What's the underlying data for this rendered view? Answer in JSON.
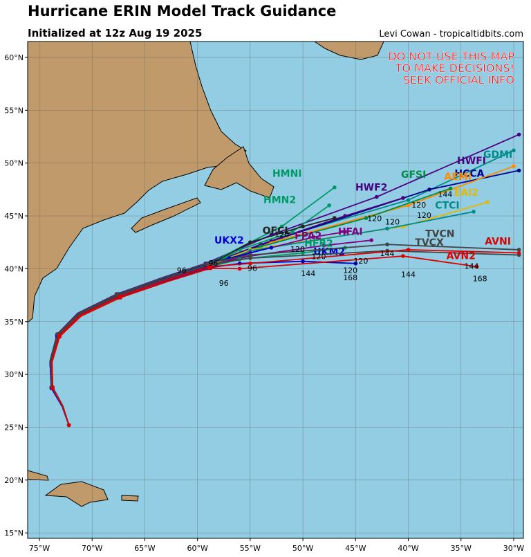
{
  "header": {
    "title": "Hurricane ERIN Model Track Guidance",
    "subtitle": "Initialized at 12z Aug 19 2025",
    "credit": "Levi Cowan - tropicaltidbits.com"
  },
  "warning": [
    "DO NOT USE THIS MAP",
    "TO MAKE DECISIONS!",
    "SEEK OFFICIAL INFO"
  ],
  "lat_ticks": [
    "60°N",
    "55°N",
    "50°N",
    "45°N",
    "40°N",
    "35°N",
    "30°N",
    "25°N",
    "20°N",
    "15°N"
  ],
  "lon_ticks": [
    "75°W",
    "70°W",
    "65°W",
    "60°W",
    "55°W",
    "50°W",
    "45°W",
    "40°W",
    "35°W",
    "30°W"
  ],
  "models": [
    "HWFI",
    "GDMI",
    "HCCA",
    "AEMI",
    "HWF2",
    "GFSI",
    "EAI2",
    "CTCI",
    "HMNI",
    "HMN2",
    "OFCL",
    "FPA2",
    "UKX2",
    "HFAI",
    "HFB2",
    "UKM2",
    "TVCN",
    "TVCX",
    "AVNI",
    "AVN2"
  ],
  "hour_labels": [
    96,
    96,
    96,
    96,
    120,
    120,
    120,
    120,
    120,
    120,
    120,
    144,
    144,
    144,
    144,
    168,
    168,
    120,
    120,
    144
  ]
}
